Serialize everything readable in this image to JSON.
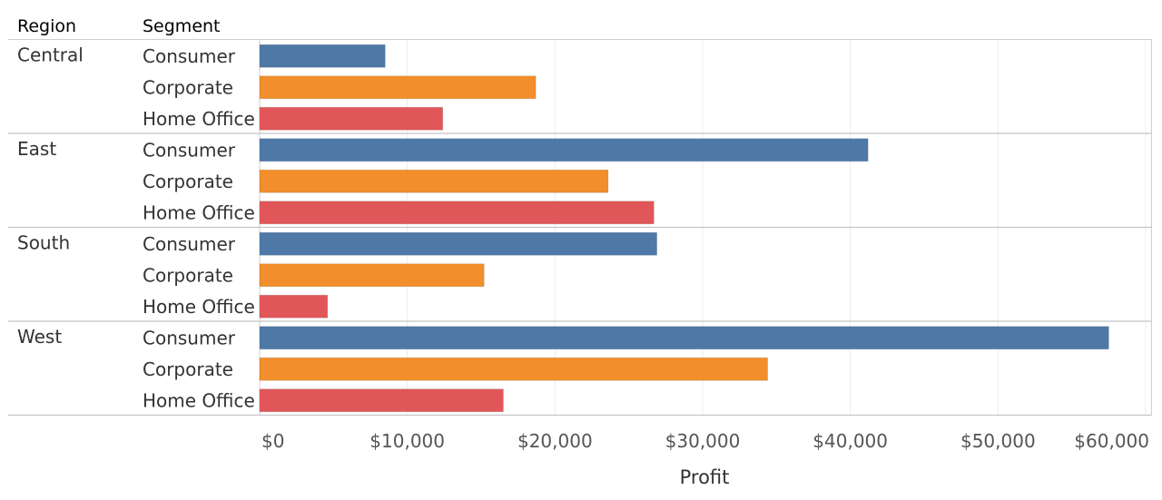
{
  "chart_data": {
    "type": "bar",
    "orientation": "horizontal",
    "row_dimension_title": "Region",
    "segment_dimension_title": "Segment",
    "xlabel": "Profit",
    "xlim": [
      0,
      60000
    ],
    "x_ticks": [
      0,
      10000,
      20000,
      30000,
      40000,
      50000,
      60000
    ],
    "x_tick_labels": [
      "$0",
      "$10,000",
      "$20,000",
      "$30,000",
      "$40,000",
      "$50,000",
      "$60,000"
    ],
    "segments": [
      "Consumer",
      "Corporate",
      "Home Office"
    ],
    "colors": {
      "Consumer": "#4e79a7",
      "Corporate": "#f28e2b",
      "Home Office": "#e15759"
    },
    "regions": [
      {
        "name": "Central",
        "values": [
          8500,
          18700,
          12400
        ]
      },
      {
        "name": "East",
        "values": [
          41200,
          23600,
          26700
        ]
      },
      {
        "name": "South",
        "values": [
          26900,
          15200,
          4600
        ]
      },
      {
        "name": "West",
        "values": [
          57500,
          34400,
          16500
        ]
      }
    ],
    "grid": true
  }
}
